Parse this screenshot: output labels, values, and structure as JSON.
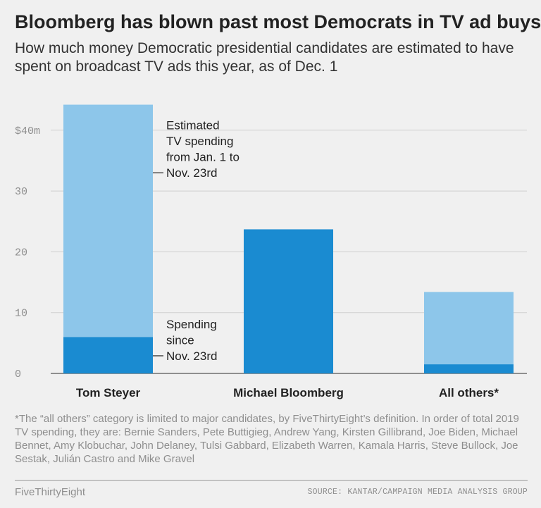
{
  "header": {
    "title": "Bloomberg has blown past most Democrats in TV ad buys",
    "subtitle": "How much money Democratic presidential candidates are estimated to have spent on broadcast TV ads this year, as of Dec. 1"
  },
  "chart_data": {
    "type": "bar",
    "stacked": true,
    "categories": [
      "Tom Steyer",
      "Michael Bloomberg",
      "All others*"
    ],
    "series": [
      {
        "name": "Spending since Nov. 23rd",
        "values": [
          6,
          23.7,
          1.5
        ],
        "color": "#1a8bd1"
      },
      {
        "name": "Estimated TV spending from Jan. 1 to Nov. 23rd",
        "values": [
          38.2,
          0,
          11.9
        ],
        "color": "#8dc6ea"
      }
    ],
    "ylim": [
      0,
      45
    ],
    "yticks": [
      {
        "value": 0,
        "label": "0"
      },
      {
        "value": 10,
        "label": "10"
      },
      {
        "value": 20,
        "label": "20"
      },
      {
        "value": 30,
        "label": "30"
      },
      {
        "value": 40,
        "label": "$40m"
      }
    ],
    "grid": true,
    "annotations": [
      {
        "lines": [
          "Estimated",
          "TV spending",
          "from Jan. 1 to",
          "Nov. 23rd"
        ],
        "y_value": 33,
        "target": "Tom Steyer"
      },
      {
        "lines": [
          "Spending",
          "since",
          "Nov. 23rd"
        ],
        "y_value": 2.9,
        "target": "Tom Steyer"
      }
    ]
  },
  "footnote": "*The “all others” category is limited to major candidates, by FiveThirtyEight’s definition. In order of total 2019 TV spending, they are: Bernie Sanders, Pete Buttigieg, Andrew Yang, Kirsten Gillibrand, Joe Biden, Michael Bennet, Amy Klobuchar, John Delaney, Tulsi Gabbard, Elizabeth Warren, Kamala Harris, Steve Bullock, Joe Sestak, Julián Castro and Mike Gravel",
  "footer": {
    "brand": "FiveThirtyEight",
    "source": "SOURCE: KANTAR/CAMPAIGN MEDIA ANALYSIS GROUP"
  }
}
